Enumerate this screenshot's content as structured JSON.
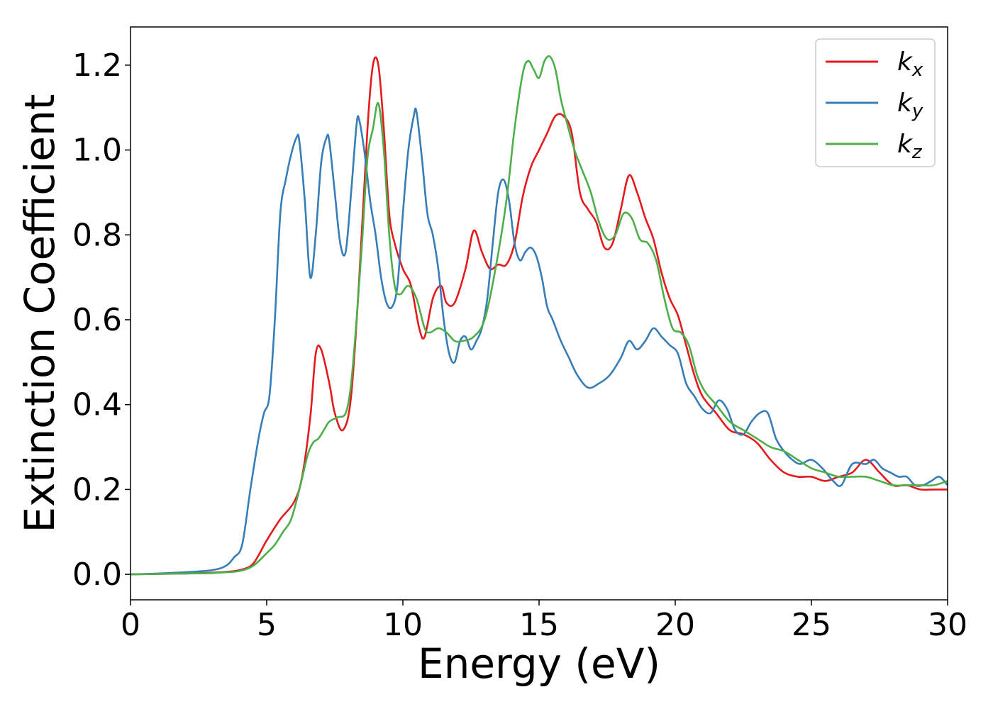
{
  "chart_data": {
    "type": "line",
    "xlabel": "Energy (eV)",
    "ylabel": "Extinction Coefficient",
    "xlim": [
      0,
      30
    ],
    "ylim": [
      -0.06,
      1.29
    ],
    "xticks": [
      "0",
      "5",
      "10",
      "15",
      "20",
      "25",
      "30"
    ],
    "yticks": [
      "0.0",
      "0.2",
      "0.4",
      "0.6",
      "0.8",
      "1.0",
      "1.2"
    ],
    "grid": false,
    "legend_position": "top-right",
    "series": [
      {
        "name": "k",
        "subscript": "x",
        "color": "#e41a1c",
        "x": [
          0,
          1,
          2,
          3,
          3.5,
          4,
          4.5,
          5,
          5.5,
          6,
          6.3,
          6.6,
          6.8,
          7.0,
          7.3,
          7.5,
          7.8,
          8.1,
          8.4,
          8.7,
          8.9,
          9.1,
          9.3,
          9.5,
          9.7,
          10.0,
          10.3,
          10.6,
          10.8,
          11.1,
          11.4,
          11.6,
          11.9,
          12.3,
          12.6,
          12.9,
          13.2,
          13.5,
          13.8,
          14.1,
          14.4,
          14.7,
          15.0,
          15.3,
          15.6,
          15.9,
          16.2,
          16.5,
          16.8,
          17.1,
          17.4,
          17.7,
          18.0,
          18.3,
          18.6,
          18.9,
          19.2,
          19.5,
          19.8,
          20.1,
          20.4,
          20.7,
          21.0,
          21.5,
          22.0,
          22.5,
          23.0,
          23.5,
          24.0,
          24.5,
          25.0,
          25.5,
          26.0,
          26.5,
          27.0,
          27.5,
          28.0,
          28.5,
          29.0,
          29.5,
          30.0
        ],
        "y": [
          0.0,
          0.001,
          0.002,
          0.004,
          0.006,
          0.01,
          0.025,
          0.08,
          0.13,
          0.17,
          0.23,
          0.37,
          0.52,
          0.53,
          0.45,
          0.38,
          0.34,
          0.42,
          0.7,
          1.05,
          1.2,
          1.2,
          1.05,
          0.85,
          0.78,
          0.72,
          0.68,
          0.58,
          0.56,
          0.65,
          0.68,
          0.64,
          0.64,
          0.72,
          0.81,
          0.76,
          0.72,
          0.73,
          0.73,
          0.78,
          0.89,
          0.96,
          1.0,
          1.04,
          1.08,
          1.08,
          1.04,
          0.9,
          0.86,
          0.83,
          0.77,
          0.78,
          0.86,
          0.94,
          0.9,
          0.84,
          0.79,
          0.71,
          0.65,
          0.61,
          0.54,
          0.47,
          0.42,
          0.38,
          0.34,
          0.33,
          0.31,
          0.27,
          0.24,
          0.23,
          0.23,
          0.22,
          0.23,
          0.24,
          0.27,
          0.24,
          0.21,
          0.21,
          0.2,
          0.2,
          0.2
        ]
      },
      {
        "name": "k",
        "subscript": "y",
        "color": "#377eb8",
        "x": [
          0,
          1,
          2,
          3,
          3.5,
          3.8,
          4.1,
          4.4,
          4.7,
          4.9,
          5.1,
          5.3,
          5.5,
          5.7,
          5.9,
          6.1,
          6.2,
          6.4,
          6.6,
          6.8,
          7.0,
          7.2,
          7.3,
          7.5,
          7.7,
          7.9,
          8.1,
          8.3,
          8.4,
          8.6,
          8.8,
          9.0,
          9.2,
          9.4,
          9.6,
          9.8,
          10.0,
          10.2,
          10.4,
          10.5,
          10.7,
          10.9,
          11.1,
          11.3,
          11.5,
          11.7,
          11.9,
          12.1,
          12.3,
          12.5,
          12.7,
          12.9,
          13.1,
          13.3,
          13.5,
          13.7,
          13.9,
          14.1,
          14.3,
          14.5,
          14.7,
          14.9,
          15.1,
          15.3,
          15.5,
          15.8,
          16.1,
          16.4,
          16.8,
          17.2,
          17.6,
          18.0,
          18.3,
          18.6,
          18.9,
          19.2,
          19.5,
          19.8,
          20.1,
          20.4,
          20.7,
          21.0,
          21.3,
          21.6,
          21.9,
          22.2,
          22.5,
          22.8,
          23.1,
          23.4,
          23.7,
          24.0,
          24.3,
          24.6,
          25.0,
          25.4,
          25.8,
          26.1,
          26.5,
          27.0,
          27.3,
          27.6,
          27.9,
          28.2,
          28.5,
          28.8,
          29.1,
          29.4,
          29.7,
          30.0
        ],
        "y": [
          0.0,
          0.002,
          0.005,
          0.01,
          0.02,
          0.04,
          0.07,
          0.2,
          0.32,
          0.38,
          0.42,
          0.6,
          0.85,
          0.93,
          0.99,
          1.03,
          1.02,
          0.88,
          0.7,
          0.8,
          0.97,
          1.03,
          1.02,
          0.9,
          0.78,
          0.76,
          0.9,
          1.06,
          1.07,
          0.99,
          0.88,
          0.8,
          0.7,
          0.64,
          0.63,
          0.68,
          0.85,
          1.0,
          1.08,
          1.09,
          0.98,
          0.85,
          0.8,
          0.72,
          0.6,
          0.52,
          0.5,
          0.55,
          0.56,
          0.53,
          0.55,
          0.58,
          0.65,
          0.78,
          0.9,
          0.93,
          0.88,
          0.78,
          0.74,
          0.76,
          0.77,
          0.75,
          0.7,
          0.63,
          0.6,
          0.55,
          0.51,
          0.47,
          0.44,
          0.45,
          0.47,
          0.51,
          0.55,
          0.53,
          0.55,
          0.58,
          0.56,
          0.54,
          0.52,
          0.45,
          0.42,
          0.39,
          0.38,
          0.41,
          0.39,
          0.34,
          0.33,
          0.36,
          0.38,
          0.38,
          0.32,
          0.29,
          0.27,
          0.26,
          0.27,
          0.25,
          0.22,
          0.21,
          0.26,
          0.26,
          0.27,
          0.25,
          0.24,
          0.23,
          0.23,
          0.21,
          0.21,
          0.22,
          0.23,
          0.21
        ]
      },
      {
        "name": "k",
        "subscript": "z",
        "color": "#4daf4a",
        "x": [
          0,
          1,
          2,
          3,
          3.5,
          4,
          4.5,
          5,
          5.3,
          5.6,
          5.9,
          6.2,
          6.5,
          6.7,
          6.9,
          7.1,
          7.3,
          7.6,
          7.9,
          8.1,
          8.3,
          8.5,
          8.7,
          8.9,
          9.1,
          9.3,
          9.5,
          9.7,
          9.9,
          10.2,
          10.5,
          10.8,
          11.0,
          11.3,
          11.6,
          11.9,
          12.2,
          12.6,
          13.0,
          13.4,
          13.8,
          14.1,
          14.4,
          14.6,
          14.8,
          15.0,
          15.2,
          15.4,
          15.6,
          15.8,
          16.0,
          16.3,
          16.6,
          16.9,
          17.2,
          17.5,
          17.8,
          18.1,
          18.4,
          18.7,
          19.0,
          19.3,
          19.6,
          19.9,
          20.2,
          20.5,
          20.8,
          21.1,
          21.5,
          22.0,
          22.5,
          23.0,
          23.5,
          24.0,
          24.5,
          25.0,
          25.5,
          26.0,
          26.5,
          27.0,
          27.5,
          28.0,
          28.5,
          29.0,
          29.5,
          30.0
        ],
        "y": [
          0.0,
          0.001,
          0.002,
          0.003,
          0.005,
          0.008,
          0.02,
          0.05,
          0.07,
          0.1,
          0.13,
          0.2,
          0.28,
          0.31,
          0.32,
          0.34,
          0.36,
          0.37,
          0.38,
          0.45,
          0.6,
          0.78,
          0.98,
          1.05,
          1.11,
          1.0,
          0.8,
          0.68,
          0.66,
          0.68,
          0.65,
          0.58,
          0.57,
          0.58,
          0.57,
          0.55,
          0.55,
          0.56,
          0.6,
          0.72,
          0.88,
          1.05,
          1.18,
          1.21,
          1.19,
          1.17,
          1.21,
          1.22,
          1.19,
          1.12,
          1.07,
          1.0,
          0.95,
          0.9,
          0.83,
          0.79,
          0.8,
          0.85,
          0.84,
          0.79,
          0.78,
          0.74,
          0.65,
          0.58,
          0.57,
          0.54,
          0.47,
          0.43,
          0.4,
          0.36,
          0.34,
          0.32,
          0.3,
          0.29,
          0.27,
          0.25,
          0.24,
          0.23,
          0.23,
          0.23,
          0.22,
          0.21,
          0.21,
          0.21,
          0.21,
          0.22
        ]
      }
    ]
  }
}
